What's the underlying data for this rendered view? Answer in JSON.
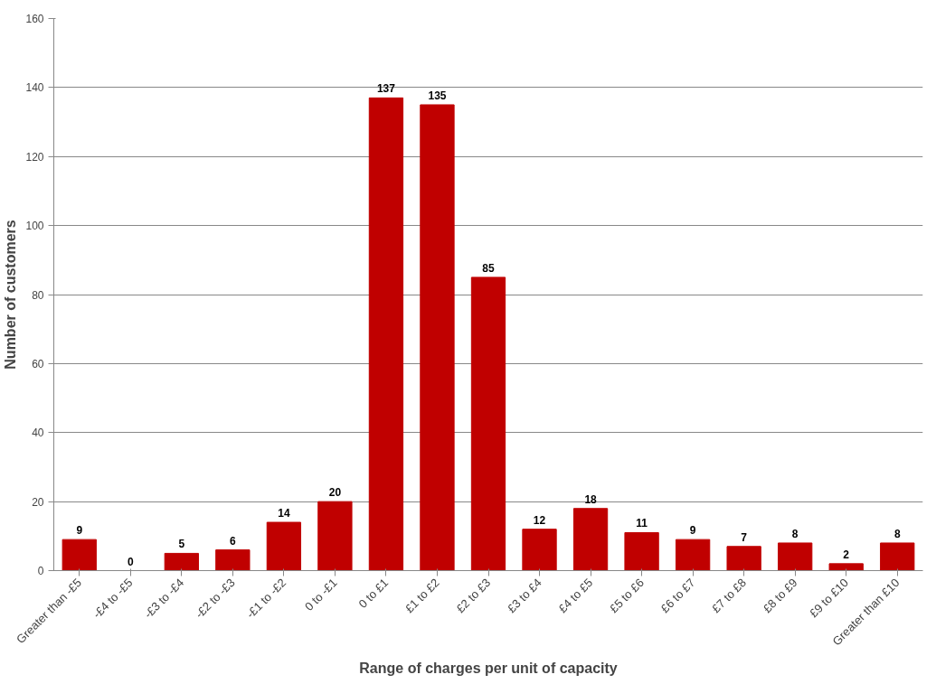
{
  "chart_data": {
    "type": "bar",
    "xlabel": "Range of charges per unit of capacity",
    "ylabel": "Number of customers",
    "categories": [
      "Greater than -£5",
      "-£4 to -£5",
      "-£3 to -£4",
      "-£2 to -£3",
      "-£1 to -£2",
      "0 to -£1",
      "0 to £1",
      "£1 to £2",
      "£2 to £3",
      "£3 to £4",
      "£4 to £5",
      "£5 to £6",
      "£6 to £7",
      "£7 to £8",
      "£8 to £9",
      "£9 to £10",
      "Greater than £10"
    ],
    "values": [
      9,
      0,
      5,
      6,
      14,
      20,
      137,
      135,
      85,
      12,
      18,
      11,
      9,
      7,
      8,
      2,
      8
    ],
    "color": "#c00000",
    "ylim": [
      0,
      160
    ],
    "yticks": [
      0,
      20,
      40,
      60,
      80,
      100,
      120,
      140,
      160
    ],
    "grid": "y",
    "data_labels": true
  }
}
